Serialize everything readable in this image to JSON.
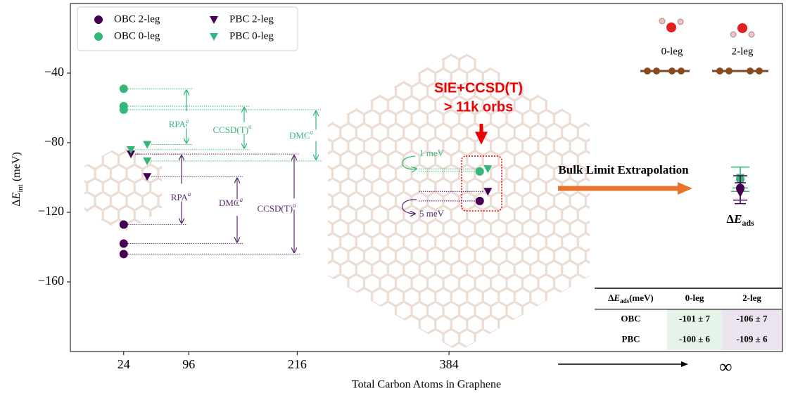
{
  "chart_data": {
    "type": "scatter",
    "xlabel": "Total Carbon Atoms in Graphene",
    "ylabel": [
      "Δ",
      "E",
      "int",
      " (meV)"
    ],
    "xlim": [
      -35,
      753
    ],
    "ylim": [
      -200,
      0
    ],
    "xticks": [
      24,
      96,
      216,
      384
    ],
    "yticks": [
      {
        "value": -40,
        "label": "−40"
      },
      {
        "value": -80,
        "label": "−80"
      },
      {
        "value": -120,
        "label": "−120"
      },
      {
        "value": -160,
        "label": "−160"
      }
    ],
    "infinity_label": "∞",
    "series": [
      {
        "name": "OBC 2-leg",
        "color": "#440154",
        "marker": "circle",
        "x": [
          24,
          24,
          24,
          418
        ],
        "values": [
          -127,
          -138,
          -144,
          -113.5
        ]
      },
      {
        "name": "OBC 0-leg",
        "color": "#35b779",
        "marker": "circle",
        "x": [
          24,
          24,
          24,
          418
        ],
        "values": [
          -49,
          -59,
          -61,
          -96.5
        ]
      },
      {
        "name": "PBC 2-leg",
        "color": "#440154",
        "marker": "triangle",
        "x": [
          32,
          50,
          427
        ],
        "values": [
          -86.5,
          -99.5,
          -108
        ]
      },
      {
        "name": "PBC 0-leg",
        "color": "#35b779",
        "marker": "triangle",
        "x": [
          32,
          50,
          50,
          427
        ],
        "values": [
          -84,
          -81,
          -90.5,
          -95
        ]
      }
    ],
    "annotations": [
      {
        "text": "RPA",
        "sup": "a",
        "color": "#35b779"
      },
      {
        "text": "CCSD(T)",
        "sup": "a",
        "color": "#35b779"
      },
      {
        "text": "DMC",
        "sup": "a",
        "color": "#35b779"
      },
      {
        "text": "RPA",
        "sup": "a",
        "color": "#5c2a6e"
      },
      {
        "text": "DMC",
        "sup": "a",
        "color": "#5c2a6e"
      },
      {
        "text": "CCSD(T)",
        "sup": "a",
        "color": "#5c2a6e"
      }
    ],
    "gap_labels": [
      "1 meV",
      "5 meV"
    ],
    "method_label": [
      "SIE+CCSD(T)",
      "> 11k orbs"
    ],
    "extrapolation_label": "Bulk Limit Extrapolation",
    "ads_label": [
      "Δ",
      "E",
      "ads"
    ],
    "molecule_labels": [
      "0-leg",
      "2-leg"
    ],
    "extrapolation": {
      "corner": [
        "Δ",
        "E",
        "ads",
        "(meV)"
      ],
      "columns": [
        "0-leg",
        "2-leg"
      ],
      "rows": [
        "OBC",
        "PBC"
      ],
      "colors": [
        "#35b779",
        "#440154"
      ],
      "markers": [
        "circle",
        "triangle"
      ],
      "values": [
        [
          -101,
          -106
        ],
        [
          -100,
          -109
        ]
      ],
      "errors": [
        [
          7,
          7
        ],
        [
          6,
          6
        ]
      ],
      "labels": [
        [
          "-101 ± 7",
          "-106 ± 7"
        ],
        [
          "-100 ± 6",
          "-109 ± 6"
        ]
      ]
    }
  }
}
